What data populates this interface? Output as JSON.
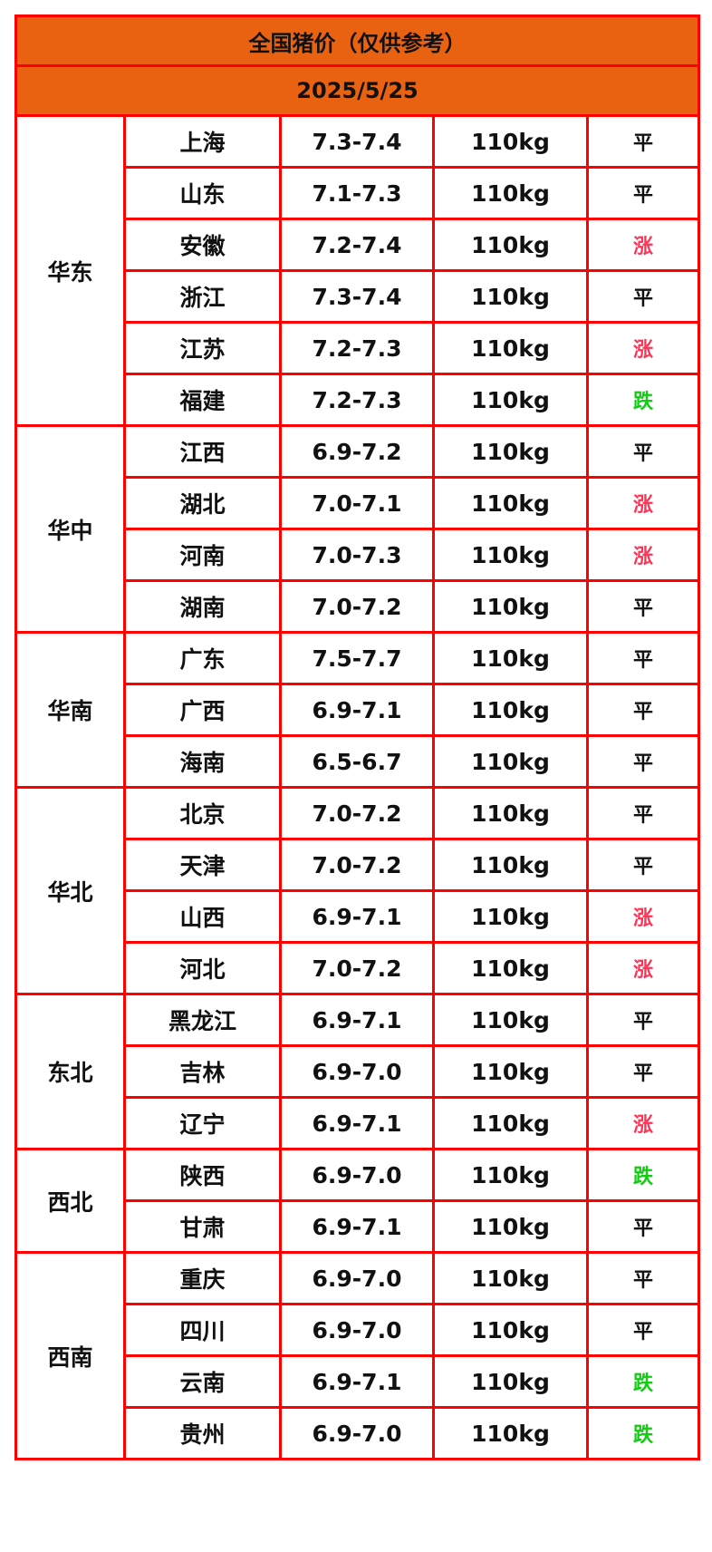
{
  "title": "全国猪价（仅供参考）",
  "date": "2025/5/25",
  "colors": {
    "header_bg": "#e86212",
    "border": "#ff0000",
    "up": "#ff3355",
    "down": "#11cc11",
    "flat": "#111111"
  },
  "regions": [
    {
      "name": "华东",
      "rows": [
        {
          "province": "上海",
          "price": "7.3-7.4",
          "weight": "110kg",
          "trend": "平"
        },
        {
          "province": "山东",
          "price": "7.1-7.3",
          "weight": "110kg",
          "trend": "平"
        },
        {
          "province": "安徽",
          "price": "7.2-7.4",
          "weight": "110kg",
          "trend": "涨"
        },
        {
          "province": "浙江",
          "price": "7.3-7.4",
          "weight": "110kg",
          "trend": "平"
        },
        {
          "province": "江苏",
          "price": "7.2-7.3",
          "weight": "110kg",
          "trend": "涨"
        },
        {
          "province": "福建",
          "price": "7.2-7.3",
          "weight": "110kg",
          "trend": "跌"
        }
      ]
    },
    {
      "name": "华中",
      "rows": [
        {
          "province": "江西",
          "price": "6.9-7.2",
          "weight": "110kg",
          "trend": "平"
        },
        {
          "province": "湖北",
          "price": "7.0-7.1",
          "weight": "110kg",
          "trend": "涨"
        },
        {
          "province": "河南",
          "price": "7.0-7.3",
          "weight": "110kg",
          "trend": "涨"
        },
        {
          "province": "湖南",
          "price": "7.0-7.2",
          "weight": "110kg",
          "trend": "平"
        }
      ]
    },
    {
      "name": "华南",
      "rows": [
        {
          "province": "广东",
          "price": "7.5-7.7",
          "weight": "110kg",
          "trend": "平"
        },
        {
          "province": "广西",
          "price": "6.9-7.1",
          "weight": "110kg",
          "trend": "平"
        },
        {
          "province": "海南",
          "price": "6.5-6.7",
          "weight": "110kg",
          "trend": "平"
        }
      ]
    },
    {
      "name": "华北",
      "rows": [
        {
          "province": "北京",
          "price": "7.0-7.2",
          "weight": "110kg",
          "trend": "平"
        },
        {
          "province": "天津",
          "price": "7.0-7.2",
          "weight": "110kg",
          "trend": "平"
        },
        {
          "province": "山西",
          "price": "6.9-7.1",
          "weight": "110kg",
          "trend": "涨"
        },
        {
          "province": "河北",
          "price": "7.0-7.2",
          "weight": "110kg",
          "trend": "涨"
        }
      ]
    },
    {
      "name": "东北",
      "rows": [
        {
          "province": "黑龙江",
          "price": "6.9-7.1",
          "weight": "110kg",
          "trend": "平"
        },
        {
          "province": "吉林",
          "price": "6.9-7.0",
          "weight": "110kg",
          "trend": "平"
        },
        {
          "province": "辽宁",
          "price": "6.9-7.1",
          "weight": "110kg",
          "trend": "涨"
        }
      ]
    },
    {
      "name": "西北",
      "rows": [
        {
          "province": "陕西",
          "price": "6.9-7.0",
          "weight": "110kg",
          "trend": "跌"
        },
        {
          "province": "甘肃",
          "price": "6.9-7.1",
          "weight": "110kg",
          "trend": "平"
        }
      ]
    },
    {
      "name": "西南",
      "rows": [
        {
          "province": "重庆",
          "price": "6.9-7.0",
          "weight": "110kg",
          "trend": "平"
        },
        {
          "province": "四川",
          "price": "6.9-7.0",
          "weight": "110kg",
          "trend": "平"
        },
        {
          "province": "云南",
          "price": "6.9-7.1",
          "weight": "110kg",
          "trend": "跌"
        },
        {
          "province": "贵州",
          "price": "6.9-7.0",
          "weight": "110kg",
          "trend": "跌"
        }
      ]
    }
  ]
}
